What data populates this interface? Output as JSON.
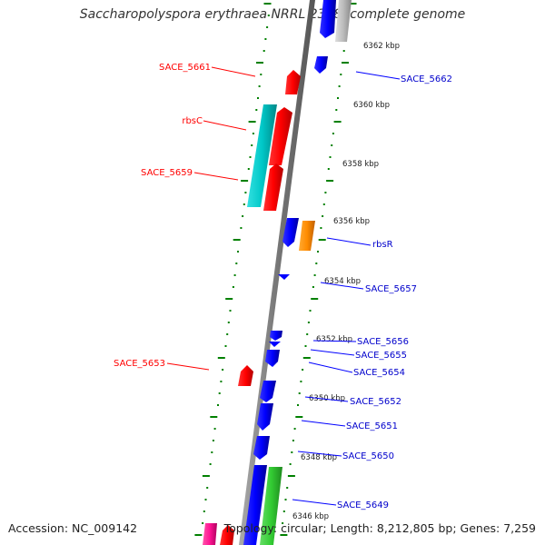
{
  "title": "Saccharopolyspora erythraea NRRL 2338, complete genome",
  "footer": {
    "accession": "Accession: NC_009142",
    "summary": "Topology: circular; Length: 8,212,805 bp; Genes: 7,259"
  },
  "ticks": [
    {
      "label": "6362 kbp"
    },
    {
      "label": "6360 kbp"
    },
    {
      "label": "6358 kbp"
    },
    {
      "label": "6356 kbp"
    },
    {
      "label": "6354 kbp"
    },
    {
      "label": "6352 kbp"
    },
    {
      "label": "6350 kbp"
    },
    {
      "label": "6348 kbp"
    },
    {
      "label": "6346 kbp"
    }
  ],
  "genes_forward": [
    {
      "name": "SACE_5661",
      "label": "SACE_5661",
      "color": "#ff0000"
    },
    {
      "name": "rbsC",
      "label": "rbsC",
      "color": "#ff0000"
    },
    {
      "name": "SACE_5659",
      "label": "SACE_5659",
      "color": "#ff0000"
    },
    {
      "name": "SACE_5653",
      "label": "SACE_5653",
      "color": "#ff0000"
    }
  ],
  "genes_reverse": [
    {
      "name": "SACE_5662",
      "label": "SACE_5662",
      "color": "#0000ff"
    },
    {
      "name": "rbsR",
      "label": "rbsR",
      "color": "#0000ff"
    },
    {
      "name": "SACE_5657",
      "label": "SACE_5657",
      "color": "#0000ff"
    },
    {
      "name": "SACE_5656",
      "label": "SACE_5656",
      "color": "#0000ff"
    },
    {
      "name": "SACE_5655",
      "label": "SACE_5655",
      "color": "#0000ff"
    },
    {
      "name": "SACE_5654",
      "label": "SACE_5654",
      "color": "#0000ff"
    },
    {
      "name": "SACE_5652",
      "label": "SACE_5652",
      "color": "#0000ff"
    },
    {
      "name": "SACE_5651",
      "label": "SACE_5651",
      "color": "#0000ff"
    },
    {
      "name": "SACE_5650",
      "label": "SACE_5650",
      "color": "#0000ff"
    },
    {
      "name": "SACE_5649",
      "label": "SACE_5649",
      "color": "#0000ff"
    }
  ],
  "colors": {
    "forward_label": "#ff0000",
    "reverse_label": "#0000cc",
    "backbone": "#888888",
    "tick_marks": "#008000",
    "cyan_feature": "#00c8c8",
    "orange_feature": "#ff8c00",
    "green_feature": "#33cc33",
    "magenta_feature": "#ff1493",
    "grey_feature": "#bbbbbb"
  }
}
